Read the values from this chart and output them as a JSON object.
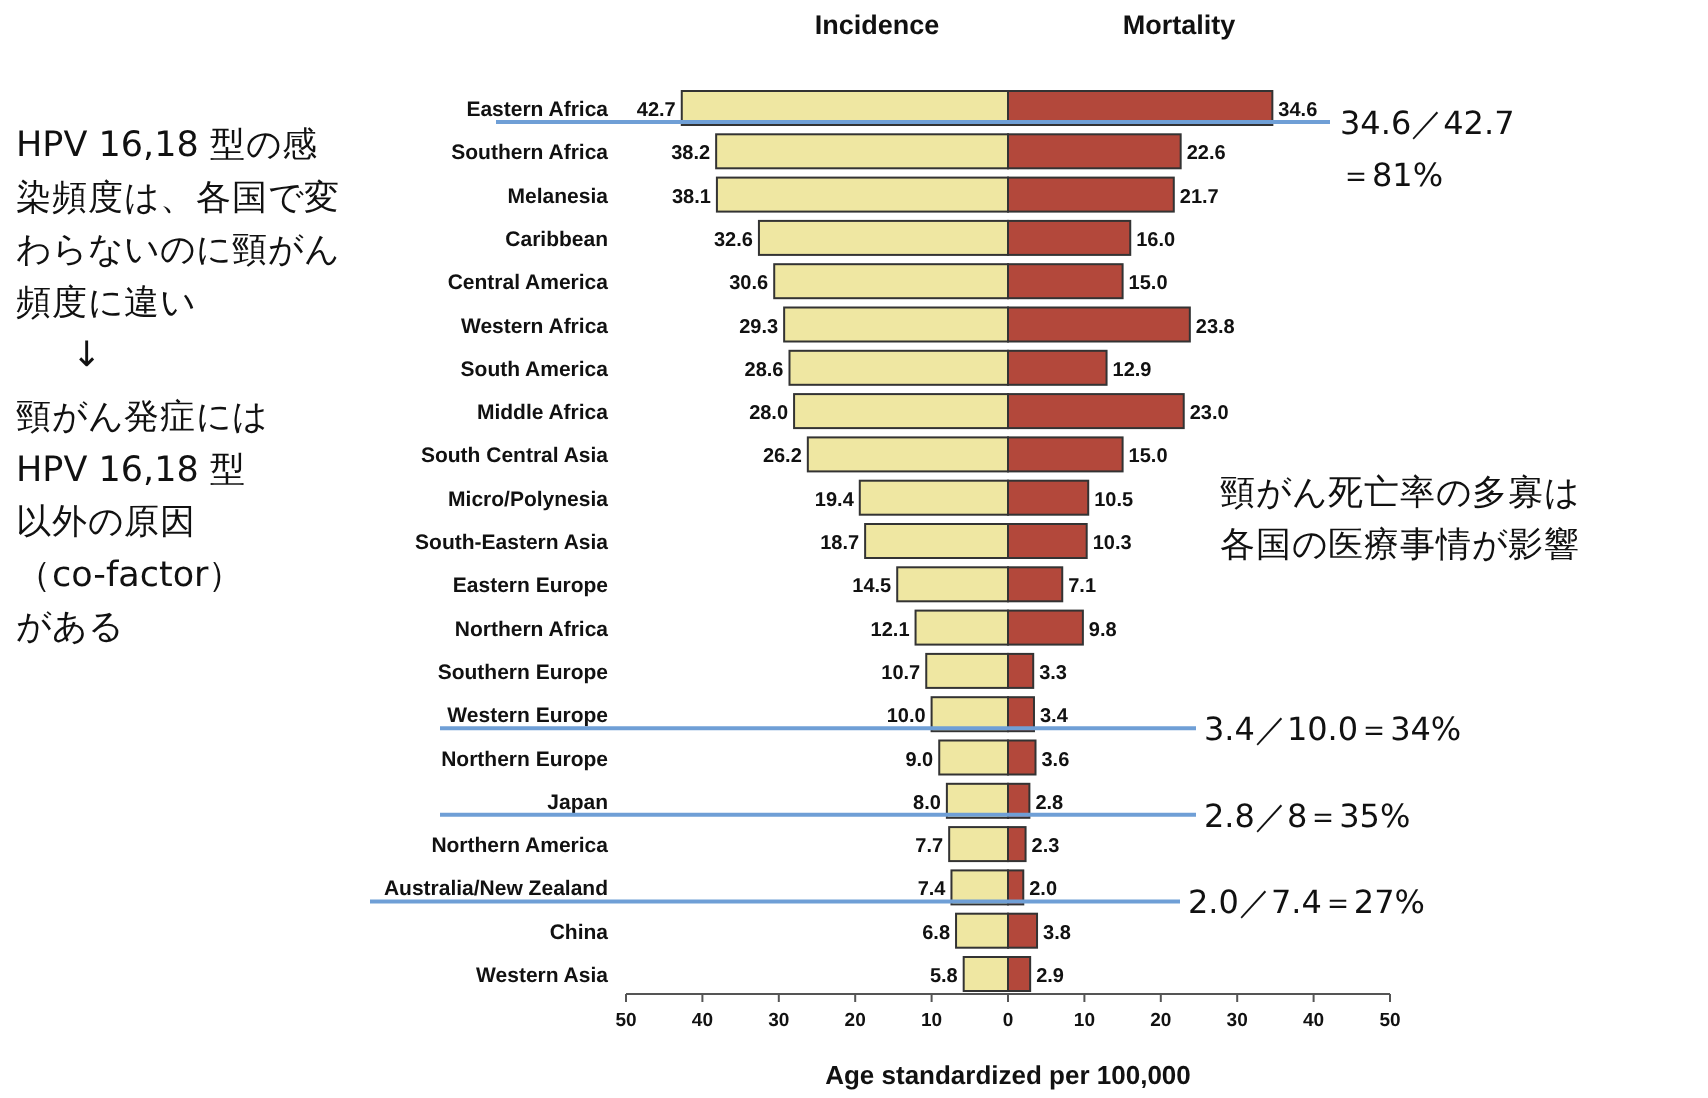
{
  "chart_data": [
    {
      "type": "bar",
      "orientation": "horizontal",
      "title": "Incidence",
      "categories": [
        "Eastern Africa",
        "Southern Africa",
        "Melanesia",
        "Caribbean",
        "Central America",
        "Western Africa",
        "South America",
        "Middle Africa",
        "South Central Asia",
        "Micro/Polynesia",
        "South-Eastern Asia",
        "Eastern Europe",
        "Northern Africa",
        "Southern Europe",
        "Western Europe",
        "Northern Europe",
        "Japan",
        "Northern America",
        "Australia/New Zealand",
        "China",
        "Western Asia"
      ],
      "color": "#efe7a2",
      "values": [
        42.7,
        38.2,
        38.1,
        32.6,
        30.6,
        29.3,
        28.6,
        28.0,
        26.2,
        19.4,
        18.7,
        14.5,
        12.1,
        10.7,
        10.0,
        9.0,
        8.0,
        7.7,
        7.4,
        6.8,
        5.8
      ],
      "value_labels": [
        "42.7",
        "38.2",
        "38.1",
        "32.6",
        "30.6",
        "29.3",
        "28.6",
        "28.0",
        "26.2",
        "19.4",
        "18.7",
        "14.5",
        "12.1",
        "10.7",
        "10.0",
        "9.0",
        "8.0",
        "7.7",
        "7.4",
        "6.8",
        "5.8"
      ],
      "xlim": [
        50,
        0
      ],
      "xticks": [
        50,
        40,
        30,
        20,
        10,
        {
          "value": 0,
          "label": null
        }
      ],
      "annotations": [
        "HPV 16,18 型の感染頻度は、各国で変わらないのに頸がん頻度に違い",
        "↓",
        "頸がん発症にはHPV 16,18 型以外の原因（co-factor）がある"
      ]
    },
    {
      "type": "bar",
      "orientation": "horizontal",
      "title": "Mortality",
      "tick_labels": "x",
      "categories": [
        "Eastern Africa",
        "Southern Africa",
        "Melanesia",
        "Caribbean",
        "Central America",
        "Western Africa",
        "South America",
        "Middle Africa",
        "South Central Asia",
        "Micro/Polynesia",
        "South-Eastern Asia",
        "Eastern Europe",
        "Northern Africa",
        "Southern Europe",
        "Western Europe",
        "Northern Europe",
        "Japan",
        "Northern America",
        "Australia/New Zealand",
        "China",
        "Western Asia"
      ],
      "color": "#b3483b",
      "values": [
        34.6,
        22.6,
        21.7,
        16.0,
        15.0,
        23.8,
        12.9,
        23.0,
        15.0,
        10.5,
        10.3,
        7.1,
        9.8,
        3.3,
        3.4,
        3.6,
        2.8,
        2.3,
        2.0,
        3.8,
        2.9
      ],
      "value_labels": [
        "34.6",
        "22.6",
        "21.7",
        "16.0",
        "15.0",
        "23.8",
        "12.9",
        "23.0",
        "15.0",
        "10.5",
        "10.3",
        "7.1",
        "9.8",
        "3.3",
        "3.4",
        "3.6",
        "2.8",
        "2.3",
        "2.0",
        "3.8",
        "2.9"
      ],
      "xlim": [
        0,
        50
      ],
      "xticks": [
        0,
        10,
        20,
        30,
        40,
        50
      ],
      "xlabel": "Age standardized per 100,000",
      "annotations": [
        "頸がん死亡率の多寡は各国の医療事情が影響"
      ],
      "ref_lines": [
        {
          "axis": "y",
          "value": "Eastern Africa",
          "label": "34.6／42.7＝81%",
          "color": "#6f9fd6"
        },
        {
          "axis": "y",
          "value": "Western Europe",
          "label": "3.4／10.0＝34%",
          "color": "#6f9fd6"
        },
        {
          "axis": "y",
          "value": "Japan",
          "label": "2.8／8＝35%",
          "color": "#6f9fd6"
        },
        {
          "axis": "y",
          "value": "Australia/New Zealand",
          "label": "2.0／7.4＝27%",
          "color": "#6f9fd6"
        }
      ]
    }
  ]
}
